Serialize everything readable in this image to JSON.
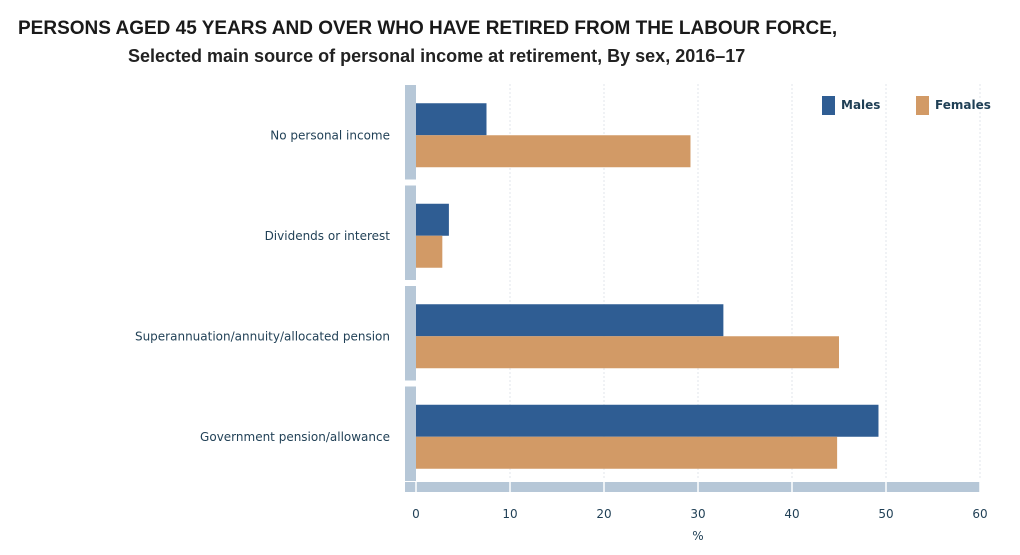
{
  "chart_data": {
    "type": "bar",
    "orientation": "horizontal",
    "title": "PERSONS AGED 45 YEARS AND OVER WHO HAVE RETIRED FROM THE LABOUR FORCE,",
    "subtitle": "Selected main source of personal income at retirement, By sex, 2016–17",
    "categories": [
      "No personal income",
      "Dividends or interest",
      "Superannuation/annuity/allocated pension",
      "Government pension/allowance"
    ],
    "series": [
      {
        "name": "Males",
        "color": "#2f5d93",
        "values": [
          7.5,
          3.5,
          32.7,
          49.2
        ]
      },
      {
        "name": "Females",
        "color": "#d29a66",
        "values": [
          29.2,
          2.8,
          45.0,
          44.8
        ]
      }
    ],
    "xlabel": "%",
    "ylabel": "",
    "xlim": [
      0,
      60
    ],
    "xticks": [
      0,
      10,
      20,
      30,
      40,
      50,
      60
    ],
    "grid": true,
    "legend_position": "top-right"
  }
}
